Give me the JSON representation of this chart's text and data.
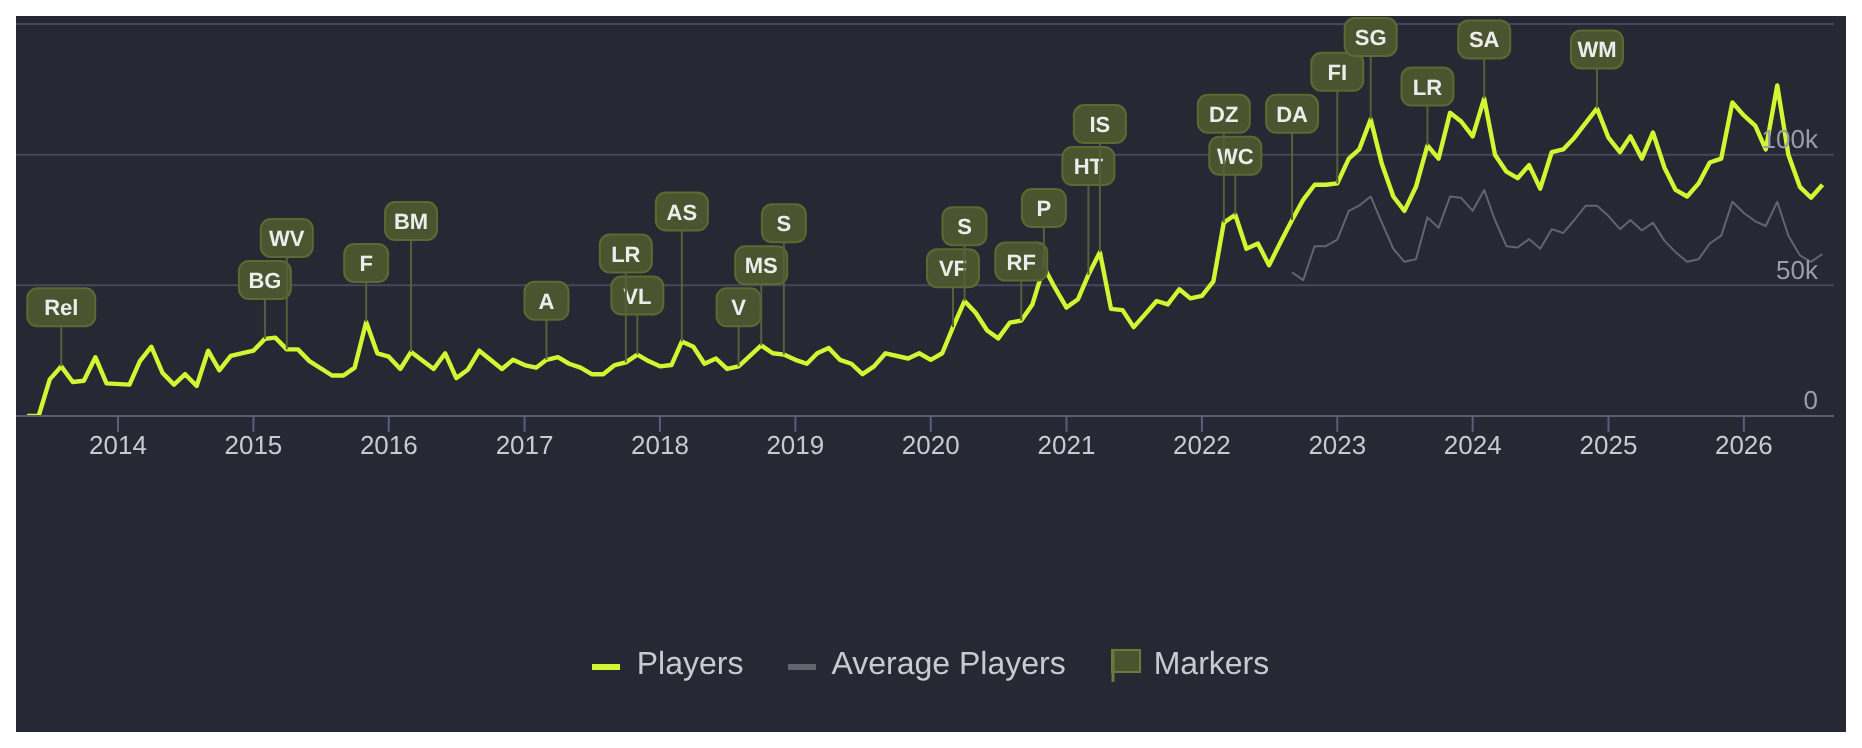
{
  "chart_data": {
    "type": "line",
    "xlim": [
      "2013-04",
      "2026-09"
    ],
    "ylim": [
      0,
      150000
    ],
    "xticks": [
      "2014",
      "2015",
      "2016",
      "2017",
      "2018",
      "2019",
      "2020",
      "2021",
      "2022",
      "2023",
      "2024",
      "2025",
      "2026"
    ],
    "yticks": [
      0,
      {
        "value": 50000,
        "label": "50k"
      },
      {
        "value": 100000,
        "label": "100k"
      },
      {
        "value": 150000,
        "label": null
      }
    ],
    "grid": "y",
    "legend": "bottom",
    "marker": "none",
    "series": [
      {
        "name": "Players",
        "color": "#d4f532",
        "x": [
          "2013-05",
          "2013-06",
          "2013-07",
          "2013-08",
          "2013-09",
          "2013-10",
          "2013-11",
          "2013-12",
          "2014-02",
          "2014-03",
          "2014-04",
          "2014-05",
          "2014-06",
          "2014-07",
          "2014-08",
          "2014-09",
          "2014-10",
          "2014-11",
          "2015-01",
          "2015-02",
          "2015-03",
          "2015-04",
          "2015-05",
          "2015-06",
          "2015-08",
          "2015-09",
          "2015-10",
          "2015-11",
          "2015-12",
          "2016-01",
          "2016-02",
          "2016-03",
          "2016-05",
          "2016-06",
          "2016-07",
          "2016-08",
          "2016-09",
          "2016-11",
          "2016-12",
          "2017-01",
          "2017-02",
          "2017-03",
          "2017-04",
          "2017-05",
          "2017-06",
          "2017-07",
          "2017-08",
          "2017-09",
          "2017-10",
          "2017-11",
          "2017-12",
          "2018-01",
          "2018-02",
          "2018-03",
          "2018-04",
          "2018-05",
          "2018-06",
          "2018-07",
          "2018-08",
          "2018-10",
          "2018-11",
          "2018-12",
          "2019-01",
          "2019-02",
          "2019-03",
          "2019-04",
          "2019-05",
          "2019-06",
          "2019-07",
          "2019-08",
          "2019-09",
          "2019-11",
          "2019-12",
          "2020-01",
          "2020-02",
          "2020-03",
          "2020-04",
          "2020-05",
          "2020-06",
          "2020-07",
          "2020-08",
          "2020-09",
          "2020-10",
          "2020-11",
          "2020-12",
          "2021-01",
          "2021-02",
          "2021-03",
          "2021-04",
          "2021-05",
          "2021-06",
          "2021-07",
          "2021-08",
          "2021-09",
          "2021-10",
          "2021-11",
          "2021-12",
          "2022-01",
          "2022-02",
          "2022-03",
          "2022-04",
          "2022-05",
          "2022-06",
          "2022-07",
          "2022-08",
          "2022-09",
          "2022-10",
          "2022-11",
          "2022-12",
          "2023-01",
          "2023-02",
          "2023-03",
          "2023-04",
          "2023-05",
          "2023-06",
          "2023-07",
          "2023-08",
          "2023-09",
          "2023-10",
          "2023-11",
          "2023-12",
          "2024-01",
          "2024-02",
          "2024-03",
          "2024-04",
          "2024-05",
          "2024-06",
          "2024-07",
          "2024-08",
          "2024-09",
          "2024-10",
          "2024-12",
          "2025-01",
          "2025-02",
          "2025-03",
          "2025-04",
          "2025-05",
          "2025-06",
          "2025-07",
          "2025-08",
          "2025-09",
          "2025-10",
          "2025-11",
          "2025-12",
          "2026-01",
          "2026-02",
          "2026-03",
          "2026-04",
          "2026-05",
          "2026-06",
          "2026-07",
          "2026-08"
        ],
        "values": [
          0,
          0,
          14000,
          19000,
          13000,
          13500,
          22500,
          12500,
          12000,
          21000,
          26500,
          16500,
          12000,
          16000,
          11500,
          25000,
          17500,
          23000,
          25000,
          29500,
          30000,
          25500,
          25500,
          21000,
          15500,
          15500,
          18500,
          36000,
          24000,
          22700,
          18000,
          24500,
          18000,
          24000,
          14500,
          17700,
          25000,
          18000,
          21500,
          19500,
          18500,
          21500,
          22500,
          20000,
          18500,
          16000,
          16000,
          19500,
          20500,
          23500,
          21000,
          19000,
          19500,
          28500,
          26500,
          20000,
          22000,
          18000,
          19000,
          27000,
          24000,
          23500,
          21500,
          20000,
          24000,
          26000,
          21500,
          20000,
          16000,
          19000,
          24000,
          22000,
          24000,
          21500,
          24000,
          34000,
          44000,
          39500,
          32700,
          29700,
          35700,
          36500,
          42700,
          57000,
          49000,
          41500,
          44700,
          54000,
          62700,
          41000,
          40500,
          34000,
          39000,
          44000,
          42700,
          48500,
          45000,
          46000,
          51500,
          74000,
          77000,
          64000,
          66000,
          57700,
          66500,
          75000,
          82700,
          88500,
          88500,
          89000,
          98500,
          102000,
          113500,
          96500,
          84000,
          78500,
          87700,
          103500,
          98500,
          116000,
          112700,
          107000,
          121500,
          100000,
          93500,
          91000,
          96000,
          87000,
          101000,
          102000,
          106500,
          117700,
          106500,
          101000,
          107000,
          98500,
          108500,
          95000,
          86500,
          84000,
          89000,
          97000,
          98500,
          120000,
          115000,
          111000,
          102000,
          126500,
          100000,
          87700,
          83500,
          88500
        ]
      },
      {
        "name": "Average Players",
        "color": "#62656d",
        "x": [
          "2022-09",
          "2022-10",
          "2022-11",
          "2022-12",
          "2023-01",
          "2023-02",
          "2023-03",
          "2023-04",
          "2023-05",
          "2023-06",
          "2023-07",
          "2023-08",
          "2023-09",
          "2023-10",
          "2023-11",
          "2023-12",
          "2024-01",
          "2024-02",
          "2024-03",
          "2024-04",
          "2024-05",
          "2024-06",
          "2024-07",
          "2024-08",
          "2024-09",
          "2024-10",
          "2024-11",
          "2024-12",
          "2025-01",
          "2025-02",
          "2025-03",
          "2025-04",
          "2025-05",
          "2025-06",
          "2025-07",
          "2025-08",
          "2025-09",
          "2025-10",
          "2025-11",
          "2025-12",
          "2026-01",
          "2026-02",
          "2026-03",
          "2026-04",
          "2026-05",
          "2026-06",
          "2026-07",
          "2026-08"
        ],
        "values": [
          55000,
          52000,
          65000,
          65000,
          67500,
          78500,
          80500,
          84000,
          74000,
          64000,
          59000,
          60000,
          76000,
          72000,
          84000,
          83500,
          78500,
          86500,
          75000,
          65000,
          64500,
          67700,
          64000,
          71500,
          70000,
          75000,
          80500,
          80500,
          76500,
          71500,
          75000,
          71000,
          74000,
          67000,
          62700,
          59000,
          60000,
          66000,
          69000,
          82000,
          77700,
          74500,
          72700,
          82000,
          69000,
          61500,
          59000,
          62000
        ]
      }
    ],
    "annotations": [
      {
        "text": "Rel",
        "x": "2013-08",
        "y": 19000
      },
      {
        "text": "BG",
        "x": "2015-02",
        "y": 29500
      },
      {
        "text": "WV",
        "x": "2015-04",
        "y": 25500
      },
      {
        "text": "F",
        "x": "2015-11",
        "y": 36000
      },
      {
        "text": "BM",
        "x": "2016-03",
        "y": 24500
      },
      {
        "text": "A",
        "x": "2017-03",
        "y": 21500
      },
      {
        "text": "VL",
        "x": "2017-11",
        "y": 23500
      },
      {
        "text": "LR",
        "x": "2017-10",
        "y": 20500
      },
      {
        "text": "AS",
        "x": "2018-03",
        "y": 28500
      },
      {
        "text": "V",
        "x": "2018-08",
        "y": 19000
      },
      {
        "text": "MS",
        "x": "2018-10",
        "y": 27000
      },
      {
        "text": "S",
        "x": "2018-12",
        "y": 23500
      },
      {
        "text": "VF",
        "x": "2020-03",
        "y": 34000
      },
      {
        "text": "S",
        "x": "2020-04",
        "y": 44000
      },
      {
        "text": "RF",
        "x": "2020-09",
        "y": 36500
      },
      {
        "text": "P",
        "x": "2020-11",
        "y": 57000
      },
      {
        "text": "HT",
        "x": "2021-03",
        "y": 54000
      },
      {
        "text": "IS",
        "x": "2021-04",
        "y": 62700
      },
      {
        "text": "WC",
        "x": "2022-04",
        "y": 77000
      },
      {
        "text": "DZ",
        "x": "2022-03",
        "y": 74000
      },
      {
        "text": "DA",
        "x": "2022-09",
        "y": 75000
      },
      {
        "text": "FI",
        "x": "2023-01",
        "y": 89000
      },
      {
        "text": "SG",
        "x": "2023-04",
        "y": 113500
      },
      {
        "text": "LR",
        "x": "2023-09",
        "y": 103500
      },
      {
        "text": "SA",
        "x": "2024-02",
        "y": 121500
      },
      {
        "text": "WM",
        "x": "2024-12",
        "y": 117700
      },
      "Markers"
    ]
  }
}
